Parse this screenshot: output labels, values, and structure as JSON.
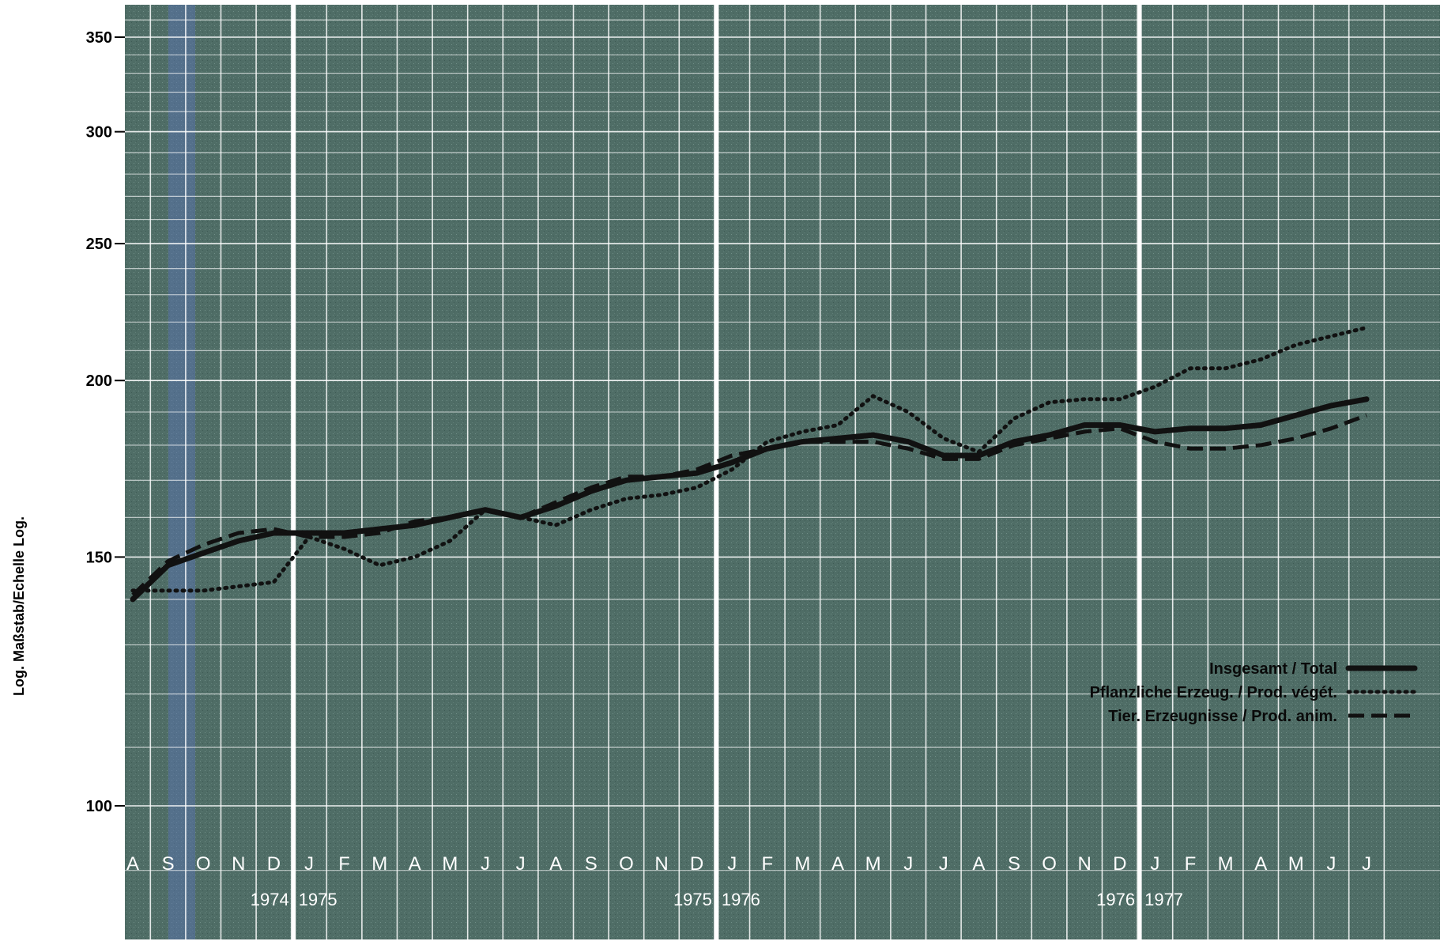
{
  "chart_data": {
    "type": "line",
    "ylabel": "Log. Maßstab/Echelle Log.",
    "yscale": "log",
    "ylim": [
      88,
      365
    ],
    "yticks": [
      100,
      150,
      200,
      250,
      300,
      350
    ],
    "grid": true,
    "legend_position": "right",
    "background_color": "#4f6d66",
    "grid_color": "#ffffff",
    "months": [
      "A",
      "S",
      "O",
      "N",
      "D",
      "J",
      "F",
      "M",
      "A",
      "M",
      "J",
      "J",
      "A",
      "S",
      "O",
      "N",
      "D",
      "J",
      "F",
      "M",
      "A",
      "M",
      "J",
      "J",
      "A",
      "S",
      "O",
      "N",
      "D",
      "J",
      "F",
      "M",
      "A",
      "M",
      "J",
      "J"
    ],
    "year_labels": [
      {
        "text": "1974",
        "after_month_index": 4
      },
      {
        "text": "1975",
        "after_month_index": 4
      },
      {
        "text": "1975",
        "after_month_index": 16
      },
      {
        "text": "1976",
        "after_month_index": 16
      },
      {
        "text": "1976",
        "after_month_index": 28
      },
      {
        "text": "1977",
        "after_month_index": 28
      }
    ],
    "series": [
      {
        "name": "Insgesamt / Total",
        "style": "solid",
        "color": "#111111",
        "x": [
          0,
          1,
          2,
          3,
          4,
          5,
          6,
          7,
          8,
          9,
          10,
          11,
          12,
          13,
          14,
          15,
          16,
          17,
          18,
          19,
          20,
          21,
          22,
          23,
          24,
          25,
          26,
          27,
          28,
          29,
          30,
          31,
          32,
          33,
          34,
          35
        ],
        "values": [
          140,
          148,
          151,
          154,
          156,
          156,
          156,
          157,
          158,
          160,
          162,
          160,
          163,
          167,
          170,
          171,
          172,
          175,
          179,
          181,
          182,
          183,
          181,
          177,
          177,
          181,
          183,
          186,
          186,
          184,
          185,
          185,
          186,
          189,
          192,
          194
        ]
      },
      {
        "name": "Pflanzliche Erzeug. / Prod. végét.",
        "style": "dotted",
        "color": "#111111",
        "x": [
          0,
          1,
          2,
          3,
          4,
          5,
          6,
          7,
          8,
          9,
          10,
          11,
          12,
          13,
          14,
          15,
          16,
          17,
          18,
          19,
          20,
          21,
          22,
          23,
          24,
          25,
          26,
          27,
          28,
          29,
          30,
          31,
          32,
          33,
          34,
          35
        ],
        "values": [
          142,
          142,
          142,
          143,
          144,
          155,
          152,
          148,
          150,
          154,
          162,
          160,
          158,
          162,
          165,
          166,
          168,
          173,
          181,
          184,
          186,
          195,
          190,
          182,
          178,
          188,
          193,
          194,
          194,
          198,
          204,
          204,
          207,
          212,
          215,
          218
        ]
      },
      {
        "name": "Tier. Erzeugnisse / Prod. anim.",
        "style": "dashed",
        "color": "#111111",
        "x": [
          0,
          1,
          2,
          3,
          4,
          5,
          6,
          7,
          8,
          9,
          10,
          11,
          12,
          13,
          14,
          15,
          16,
          17,
          18,
          19,
          20,
          21,
          22,
          23,
          24,
          25,
          26,
          27,
          28,
          29,
          30,
          31,
          32,
          33,
          34,
          35
        ],
        "values": [
          141,
          149,
          153,
          156,
          157,
          155,
          155,
          156,
          159,
          160,
          162,
          160,
          164,
          168,
          171,
          171,
          173,
          177,
          179,
          181,
          181,
          181,
          179,
          176,
          176,
          180,
          182,
          184,
          185,
          181,
          179,
          179,
          180,
          182,
          185,
          189
        ]
      }
    ]
  }
}
